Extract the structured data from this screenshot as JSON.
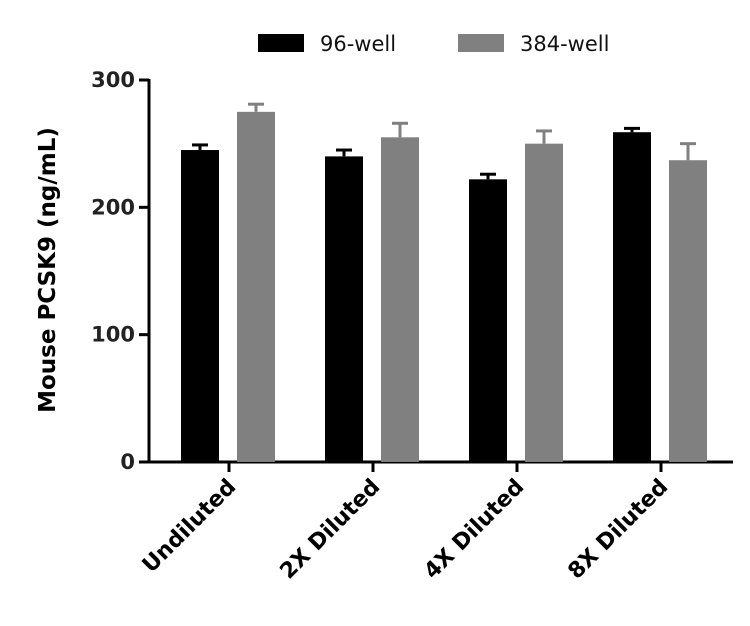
{
  "chart_data": {
    "type": "bar",
    "title": "",
    "xlabel": "",
    "ylabel": "Mouse PCSK9 (ng/mL)",
    "ylim": [
      0,
      300
    ],
    "yticks": [
      "0",
      "100",
      "200",
      "300"
    ],
    "categories": [
      "Undiluted",
      "2X Diluted",
      "4X Diluted",
      "8X Diluted"
    ],
    "legend_position": "top",
    "grid": false,
    "series": [
      {
        "name": "96-well",
        "color": "#000000",
        "values": [
          245,
          240,
          222,
          259
        ],
        "errors": [
          4,
          5,
          4,
          3
        ]
      },
      {
        "name": "384-well",
        "color": "#808080",
        "values": [
          275,
          255,
          250,
          237
        ],
        "errors": [
          6,
          11,
          10,
          13
        ]
      }
    ]
  }
}
